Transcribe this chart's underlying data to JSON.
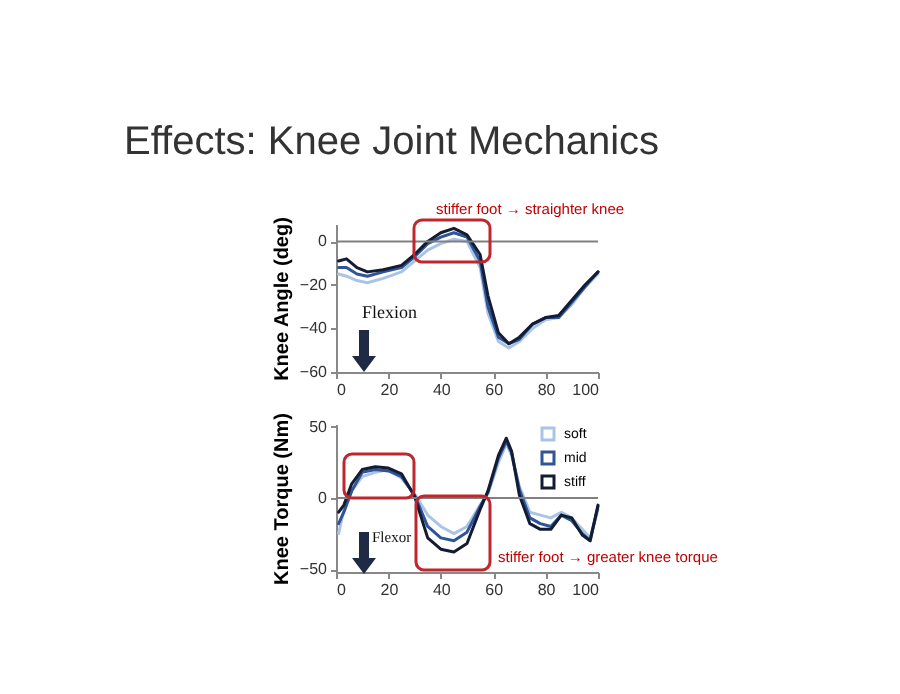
{
  "chart_data": [
    {
      "type": "line",
      "title": "Effects: Knee Joint Mechanics",
      "ylabel": "Knee Angle (deg)",
      "annotations": [
        "stiffer foot → straighter knee",
        "Flexion"
      ],
      "x": [
        1,
        4,
        8,
        12,
        18,
        25,
        30,
        35,
        40,
        45,
        50,
        55,
        58,
        62,
        66,
        70,
        75,
        80,
        85,
        90,
        95,
        100
      ],
      "series": [
        {
          "color": "#aac4e6",
          "values": [
            -15,
            -16,
            -18,
            -19,
            -17,
            -14,
            -9,
            -4,
            -1,
            1,
            0,
            -12,
            -33,
            -46,
            -49,
            -46,
            -40,
            -36,
            -35,
            -29,
            -21,
            -15
          ]
        },
        {
          "color": "#2f5597",
          "values": [
            -12,
            -12,
            -15,
            -16,
            -14,
            -12,
            -7,
            -1,
            2,
            4,
            2,
            -9,
            -30,
            -44,
            -47,
            -45,
            -38,
            -35,
            -35,
            -28,
            -21,
            -14
          ]
        },
        {
          "color": "#141c33",
          "values": [
            -9,
            -8,
            -12,
            -14,
            -13,
            -11,
            -6,
            0,
            4,
            6,
            3,
            -6,
            -25,
            -42,
            -47,
            -44,
            -38,
            -35,
            -34,
            -27,
            -20,
            -14
          ]
        }
      ],
      "xlim": [
        0,
        100
      ],
      "xticks": [
        0,
        20,
        40,
        60,
        80,
        100
      ],
      "ylim": [
        -60,
        8
      ],
      "yticks": [
        -60,
        -40,
        -20,
        0
      ],
      "ref_lines": [
        {
          "axis": "y",
          "value": 0,
          "color": "#808080"
        }
      ],
      "grid": false
    },
    {
      "type": "line",
      "ylabel": "Knee Torque (Nm)",
      "annotations": [
        "stiffer foot → greater knee torque",
        "Flexor"
      ],
      "x": [
        1,
        3,
        6,
        10,
        15,
        20,
        25,
        30,
        35,
        40,
        45,
        50,
        55,
        58,
        62,
        65,
        67,
        70,
        74,
        78,
        82,
        86,
        90,
        94,
        97,
        100
      ],
      "series": [
        {
          "name": "soft",
          "color": "#aac4e6",
          "values": [
            -25,
            -8,
            5,
            15,
            18,
            20,
            14,
            3,
            -12,
            -20,
            -25,
            -20,
            -5,
            3,
            25,
            38,
            30,
            8,
            -10,
            -12,
            -14,
            -10,
            -14,
            -22,
            -28,
            -8
          ]
        },
        {
          "name": "mid",
          "color": "#2f5597",
          "values": [
            -18,
            -10,
            5,
            18,
            20,
            19,
            15,
            2,
            -20,
            -28,
            -30,
            -24,
            -6,
            4,
            28,
            40,
            32,
            6,
            -14,
            -18,
            -20,
            -12,
            -16,
            -25,
            -30,
            -6
          ]
        },
        {
          "name": "stiff",
          "color": "#141c33",
          "values": [
            -10,
            -5,
            10,
            20,
            22,
            21,
            17,
            1,
            -28,
            -36,
            -38,
            -32,
            -8,
            5,
            30,
            42,
            33,
            2,
            -18,
            -22,
            -22,
            -12,
            -14,
            -26,
            -30,
            -5
          ]
        }
      ],
      "xlim": [
        0,
        100
      ],
      "xticks": [
        0,
        20,
        40,
        60,
        80,
        100
      ],
      "ylim": [
        -52,
        52
      ],
      "yticks": [
        -50,
        0,
        50
      ],
      "ref_lines": [
        {
          "axis": "y",
          "value": 0,
          "color": "#808080"
        }
      ],
      "grid": false,
      "legend": "top right"
    }
  ]
}
